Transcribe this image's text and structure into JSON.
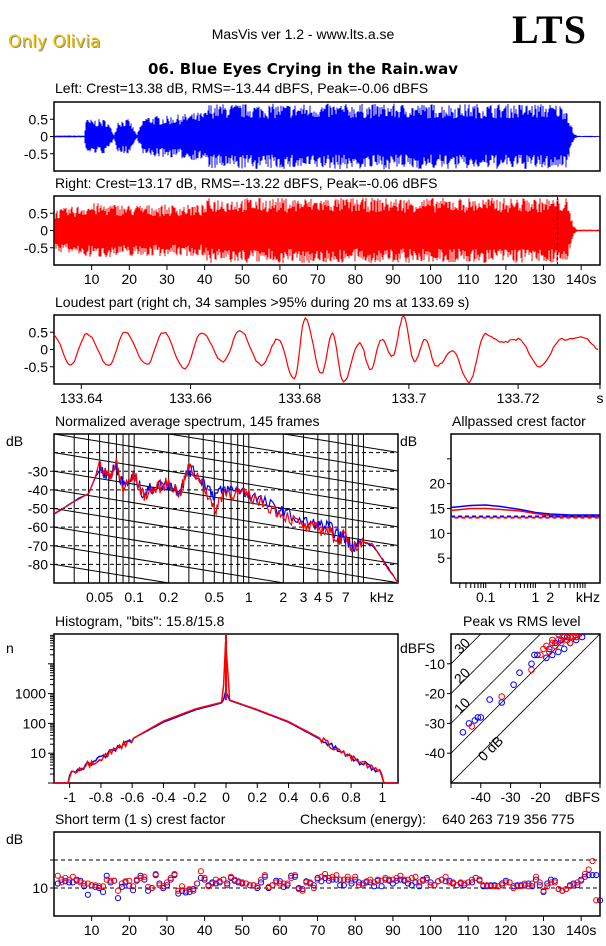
{
  "header": {
    "brand": "Only Olivia",
    "app_version": "MasVis ver 1.2 - www.lts.a.se",
    "logo": "LTS",
    "filename": "06. Blue Eyes Crying in the Rain.wav"
  },
  "colors": {
    "left": "#0000ff",
    "right": "#ff0000",
    "brand": "#f2c200"
  },
  "chart_data": [
    {
      "id": "waveform-left",
      "type": "area",
      "title": "Left: Crest=13.38 dB, RMS=-13.44 dBFS, Peak=-0.06 dBFS",
      "ylim": [
        -1,
        1
      ],
      "yticks": [
        "0.5",
        "0",
        "-0.5"
      ],
      "xlim": [
        0,
        145
      ],
      "envelope_x": [
        0,
        8,
        8.5,
        14,
        16,
        17,
        20,
        22,
        24,
        26,
        30,
        34,
        38,
        40,
        41,
        60,
        80,
        100,
        120,
        133,
        136,
        138,
        139,
        145
      ],
      "envelope_amp": [
        0.03,
        0.03,
        0.5,
        0.5,
        0.05,
        0.5,
        0.5,
        0.05,
        0.6,
        0.6,
        0.6,
        0.65,
        0.7,
        0.7,
        0.95,
        0.95,
        0.95,
        0.95,
        0.95,
        0.95,
        0.9,
        0.1,
        0.02,
        0.02
      ]
    },
    {
      "id": "waveform-right",
      "type": "area",
      "title": "Right: Crest=13.17 dB, RMS=-13.22 dBFS, Peak=-0.06 dBFS",
      "ylim": [
        -1,
        1
      ],
      "yticks": [
        "0.5",
        "0",
        "-0.5"
      ],
      "xlim": [
        0,
        145
      ],
      "xticks": [
        "10",
        "20",
        "30",
        "40",
        "50",
        "60",
        "70",
        "80",
        "90",
        "100",
        "110",
        "120",
        "130",
        "140s"
      ],
      "xtick_values": [
        10,
        20,
        30,
        40,
        50,
        60,
        70,
        80,
        90,
        100,
        110,
        120,
        130,
        140
      ],
      "loudest_marker_s": 133.69,
      "envelope_x": [
        0,
        10,
        20,
        30,
        40,
        41,
        60,
        80,
        100,
        120,
        133,
        134,
        136,
        138,
        139,
        145
      ],
      "envelope_amp": [
        0.6,
        0.8,
        0.75,
        0.75,
        0.75,
        0.95,
        0.95,
        0.95,
        0.95,
        0.95,
        0.95,
        0.95,
        0.95,
        0.15,
        0.03,
        0.03
      ]
    },
    {
      "id": "loudest-part",
      "type": "line",
      "title": "Loudest part (right ch, 34 samples >95% during 20 ms at 133.69 s)",
      "ylim": [
        -1,
        1
      ],
      "yticks": [
        "0.5",
        "0",
        "-0.5"
      ],
      "xlim": [
        133.635,
        133.735
      ],
      "xticks": [
        "133.64",
        "133.66",
        "133.68",
        "133.7",
        "133.72",
        "s"
      ],
      "xtick_values": [
        133.64,
        133.66,
        133.68,
        133.7,
        133.72,
        133.735
      ],
      "series": [
        {
          "name": "right",
          "x": [
            133.635,
            133.638,
            133.641,
            133.645,
            133.648,
            133.652,
            133.655,
            133.659,
            133.662,
            133.666,
            133.669,
            133.673,
            133.676,
            133.679,
            133.681,
            133.684,
            133.686,
            133.688,
            133.691,
            133.693,
            133.695,
            133.697,
            133.699,
            133.701,
            133.703,
            133.705,
            133.708,
            133.711,
            133.714,
            133.717,
            133.72,
            133.724,
            133.728,
            133.732,
            133.735
          ],
          "y": [
            0.4,
            -0.45,
            0.45,
            -0.45,
            0.5,
            -0.45,
            0.5,
            -0.55,
            0.5,
            -0.35,
            0.55,
            -0.45,
            0.3,
            -0.85,
            0.9,
            -0.7,
            0.45,
            -0.95,
            0.2,
            -0.6,
            0.3,
            -0.2,
            0.95,
            -0.35,
            0.3,
            -0.5,
            -0.05,
            -0.95,
            0.45,
            0.2,
            0.3,
            -0.5,
            0.3,
            0.35,
            0.0
          ]
        }
      ]
    },
    {
      "id": "spectrum",
      "type": "line",
      "title": "Normalized average spectrum, 145 frames",
      "ylabel": "dB",
      "xlabel": "kHz",
      "yticks": [
        "-30",
        "-40",
        "-50",
        "-60",
        "-70",
        "-80"
      ],
      "ylim": [
        -90,
        -10
      ],
      "xscale": "log",
      "xlim": [
        0.02,
        20
      ],
      "xticks": [
        "0.05",
        "0.1",
        "0.2",
        "0.5",
        "1",
        "2",
        "3",
        "4",
        "5",
        "7",
        "kHz"
      ],
      "xtick_values": [
        0.05,
        0.1,
        0.2,
        0.5,
        1,
        2,
        3,
        4,
        5,
        7
      ],
      "series": [
        {
          "name": "left",
          "x": [
            0.02,
            0.03,
            0.04,
            0.05,
            0.06,
            0.07,
            0.08,
            0.1,
            0.12,
            0.15,
            0.2,
            0.25,
            0.3,
            0.4,
            0.5,
            0.6,
            0.8,
            1,
            1.5,
            2,
            3,
            4,
            5,
            6,
            7,
            8,
            10,
            12,
            15,
            20
          ],
          "y": [
            -53,
            -46,
            -42,
            -28,
            -33,
            -27,
            -38,
            -33,
            -42,
            -38,
            -37,
            -40,
            -29,
            -35,
            -43,
            -40,
            -40,
            -42,
            -48,
            -52,
            -57,
            -59,
            -60,
            -64,
            -66,
            -70,
            -68,
            -70,
            -78,
            -90
          ]
        },
        {
          "name": "right",
          "x": [
            0.02,
            0.03,
            0.04,
            0.05,
            0.06,
            0.07,
            0.08,
            0.1,
            0.12,
            0.15,
            0.2,
            0.25,
            0.3,
            0.4,
            0.5,
            0.6,
            0.8,
            1,
            1.5,
            2,
            3,
            4,
            5,
            6,
            7,
            8,
            10,
            12,
            15,
            20
          ],
          "y": [
            -53,
            -46,
            -42,
            -27,
            -33,
            -26,
            -40,
            -32,
            -43,
            -40,
            -36,
            -42,
            -28,
            -36,
            -52,
            -41,
            -42,
            -43,
            -49,
            -53,
            -60,
            -61,
            -62,
            -67,
            -64,
            -71,
            -68,
            -69,
            -79,
            -90
          ]
        }
      ]
    },
    {
      "id": "allpassed-crest",
      "type": "line",
      "title": "Allpassed crest factor",
      "ylabel": "dB",
      "xlabel": "kHz",
      "yticks": [
        "20",
        "15",
        "10",
        "5"
      ],
      "ylim": [
        0,
        30
      ],
      "xscale": "log",
      "xlim": [
        0.02,
        20
      ],
      "xticks": [
        "0.1",
        "1",
        "2",
        "kHz"
      ],
      "xtick_values": [
        0.1,
        1,
        2
      ],
      "series": [
        {
          "name": "left",
          "x": [
            0.02,
            0.05,
            0.1,
            0.2,
            0.5,
            1,
            2,
            5,
            20
          ],
          "y": [
            15.2,
            15.6,
            15.7,
            15.4,
            14.8,
            14.2,
            13.9,
            13.7,
            13.7
          ]
        },
        {
          "name": "right",
          "x": [
            0.02,
            0.05,
            0.1,
            0.2,
            0.5,
            1,
            2,
            5,
            20
          ],
          "y": [
            14.6,
            15.0,
            15.0,
            14.8,
            14.5,
            14.0,
            13.6,
            13.4,
            13.4
          ]
        }
      ],
      "reference_lines": [
        {
          "name": "left-overall",
          "y": 13.38
        },
        {
          "name": "right-overall",
          "y": 13.17
        }
      ]
    },
    {
      "id": "histogram",
      "type": "line",
      "title": "Histogram, \"bits\": 15.8/15.8",
      "ylabel": "n",
      "yscale": "log",
      "ylim": [
        1,
        100000
      ],
      "yticks": [
        "1000",
        "100",
        "10"
      ],
      "ytick_values": [
        1000,
        100,
        10
      ],
      "xlim": [
        -1.1,
        1.1
      ],
      "xticks": [
        "-1",
        "-0.8",
        "-0.6",
        "-0.4",
        "-0.2",
        "0",
        "0.2",
        "0.4",
        "0.6",
        "0.8",
        "1"
      ],
      "xtick_values": [
        -1,
        -0.8,
        -0.6,
        -0.4,
        -0.2,
        0,
        0.2,
        0.4,
        0.6,
        0.8,
        1
      ],
      "series": [
        {
          "name": "left",
          "x": [
            -1.0,
            -0.95,
            -0.9,
            -0.8,
            -0.6,
            -0.4,
            -0.2,
            -0.02,
            0,
            0.02,
            0.2,
            0.4,
            0.6,
            0.8,
            0.95,
            1.0
          ],
          "y": [
            2,
            3,
            4,
            7,
            30,
            110,
            280,
            500,
            1300,
            600,
            280,
            110,
            30,
            7,
            3,
            2
          ]
        },
        {
          "name": "right",
          "x": [
            -1.0,
            -0.95,
            -0.9,
            -0.8,
            -0.6,
            -0.4,
            -0.2,
            -0.02,
            0,
            0.02,
            0.2,
            0.4,
            0.6,
            0.8,
            0.95,
            1.0
          ],
          "y": [
            2,
            3,
            4,
            7,
            30,
            120,
            300,
            520,
            100000,
            620,
            290,
            115,
            32,
            7,
            3,
            2
          ]
        }
      ]
    },
    {
      "id": "peak-vs-rms",
      "type": "scatter",
      "title": "Peak vs RMS level",
      "ylabel": "dBFS",
      "xlabel": "dBFS",
      "xlim": [
        -50,
        0
      ],
      "ylim": [
        -50,
        0
      ],
      "yticks": [
        "-10",
        "-20",
        "-30",
        "-40"
      ],
      "ytick_values": [
        -10,
        -20,
        -30,
        -40
      ],
      "xticks": [
        "-40",
        "-30",
        "-20",
        "dBFS"
      ],
      "xtick_values": [
        -40,
        -30,
        -20
      ],
      "diagonal_labels": [
        "40",
        "30",
        "20",
        "10",
        "0 dB"
      ],
      "diagonal_offsets": [
        40,
        30,
        20,
        10,
        0
      ],
      "series": [
        {
          "name": "left",
          "x": [
            -46,
            -44,
            -42,
            -41,
            -40,
            -37,
            -33,
            -29,
            -27,
            -23,
            -22,
            -21,
            -18,
            -16,
            -14,
            -12,
            -10,
            -8,
            -6,
            -17,
            -15,
            -13,
            -11
          ],
          "y": [
            -33,
            -30,
            -29,
            -28,
            -28,
            -22,
            -23,
            -17,
            -13,
            -10,
            -7,
            -7,
            -8,
            -7,
            -6,
            -5,
            -3,
            -2,
            -1,
            -5,
            -3,
            -2,
            -1
          ]
        },
        {
          "name": "right",
          "x": [
            -43,
            -33,
            -23,
            -20,
            -19,
            -18,
            -17,
            -16,
            -15,
            -14,
            -13,
            -12,
            -11,
            -10,
            -9,
            -8,
            -7,
            -16,
            -14,
            -12,
            -10,
            -8
          ],
          "y": [
            -31,
            -21,
            -12,
            -7,
            -5,
            -4,
            -6,
            -3,
            -4,
            -2,
            -3,
            -1,
            -2,
            -1,
            -1,
            -1,
            0,
            -2,
            0,
            -1,
            -3,
            -1
          ]
        }
      ]
    },
    {
      "id": "short-term-crest",
      "type": "scatter",
      "title": "Short term (1 s) crest factor",
      "checksum_label": "Checksum (energy):",
      "checksum_value": "640 263 719 356 775",
      "ylabel": "dB",
      "yticks": [
        "10"
      ],
      "ylim": [
        5,
        20
      ],
      "dashed_lines": [
        10,
        15
      ],
      "xlim": [
        0,
        145
      ],
      "xticks": [
        "10",
        "20",
        "30",
        "40",
        "50",
        "60",
        "70",
        "80",
        "90",
        "100",
        "110",
        "120",
        "130",
        "140s"
      ],
      "xtick_values": [
        10,
        20,
        30,
        40,
        50,
        60,
        70,
        80,
        90,
        100,
        110,
        120,
        130,
        140
      ],
      "series": [
        {
          "name": "left",
          "values": [
            10.8,
            11.5,
            11.2,
            11.0,
            11.0,
            11.5,
            11.3,
            10.3,
            8.8,
            10.5,
            10.2,
            10.0,
            9.3,
            12.2,
            11.0,
            11.3,
            8.2,
            10.2,
            11.0,
            10.4,
            9.6,
            11.3,
            12.2,
            11.5,
            9.5,
            10.0,
            12.3,
            10.8,
            10.0,
            10.5,
            11.5,
            12.3,
            9.0,
            9.5,
            9.2,
            9.3,
            9.8,
            10.8,
            11.8,
            11.5,
            10.5,
            11.0,
            10.8,
            11.0,
            11.5,
            10.8,
            11.8,
            11.3,
            11.0,
            10.8,
            10.8,
            10.5,
            10.5,
            10.0,
            11.0,
            12.0,
            10.0,
            10.5,
            11.3,
            11.2,
            10.2,
            10.5,
            12.2,
            12.0,
            10.0,
            9.8,
            11.2,
            10.8,
            10.5,
            11.8,
            11.2,
            11.8,
            11.3,
            11.5,
            11.5,
            10.5,
            10.5,
            11.5,
            10.8,
            11.5,
            11.0,
            10.8,
            11.0,
            11.0,
            10.3,
            11.3,
            10.3,
            11.5,
            11.3,
            10.8,
            11.3,
            11.5,
            11.3,
            10.8,
            10.5,
            11.0,
            10.3,
            11.5,
            11.8,
            11.0,
            10.5,
            11.2,
            11.5,
            11.2,
            11.3,
            10.8,
            10.5,
            10.8,
            10.5,
            11.0,
            11.0,
            11.8,
            11.5,
            10.3,
            10.3,
            10.5,
            10.5,
            10.3,
            10.8,
            11.3,
            11.0,
            10.3,
            10.5,
            10.5,
            10.5,
            10.8,
            10.3,
            11.5,
            10.5,
            9.3,
            10.8,
            11.5,
            11.3,
            9.8,
            9.5,
            9.8,
            10.5,
            10.8,
            10.5,
            11.5,
            12.0,
            12.3,
            12.3,
            12.3,
            7.8
          ]
        },
        {
          "name": "right",
          "values": [
            12.2,
            11.0,
            11.8,
            11.5,
            12.0,
            11.3,
            11.0,
            10.8,
            10.8,
            10.5,
            10.5,
            10.3,
            10.3,
            11.5,
            11.3,
            11.3,
            9.5,
            10.8,
            11.2,
            11.3,
            10.3,
            11.5,
            11.8,
            12.0,
            10.2,
            10.0,
            12.5,
            10.5,
            10.3,
            11.0,
            11.8,
            12.5,
            9.5,
            10.3,
            9.5,
            9.8,
            9.5,
            10.8,
            13.0,
            11.8,
            10.3,
            10.8,
            11.5,
            11.2,
            11.5,
            10.5,
            12.0,
            11.5,
            11.2,
            11.0,
            10.8,
            10.5,
            10.5,
            10.3,
            11.5,
            12.3,
            10.2,
            10.5,
            11.0,
            10.8,
            10.8,
            10.8,
            11.8,
            12.3,
            9.8,
            9.5,
            11.0,
            11.0,
            10.0,
            11.5,
            12.0,
            12.5,
            11.8,
            12.0,
            12.3,
            11.5,
            11.5,
            12.0,
            11.3,
            12.0,
            10.5,
            10.5,
            11.2,
            11.5,
            11.0,
            11.5,
            11.3,
            11.8,
            11.5,
            11.5,
            11.8,
            12.2,
            11.5,
            11.5,
            11.8,
            12.0,
            11.0,
            11.3,
            11.5,
            10.5,
            10.5,
            11.2,
            11.5,
            12.0,
            11.0,
            11.0,
            10.5,
            11.0,
            10.8,
            11.0,
            11.5,
            11.8,
            11.3,
            10.5,
            10.5,
            10.3,
            10.3,
            10.3,
            10.5,
            11.0,
            11.0,
            10.0,
            10.3,
            10.3,
            10.8,
            10.3,
            10.8,
            12.0,
            11.0,
            9.5,
            10.3,
            11.0,
            11.0,
            9.8,
            9.5,
            9.8,
            10.3,
            10.5,
            11.0,
            11.3,
            12.5,
            13.3,
            14.8,
            7.8
          ]
        }
      ]
    }
  ]
}
